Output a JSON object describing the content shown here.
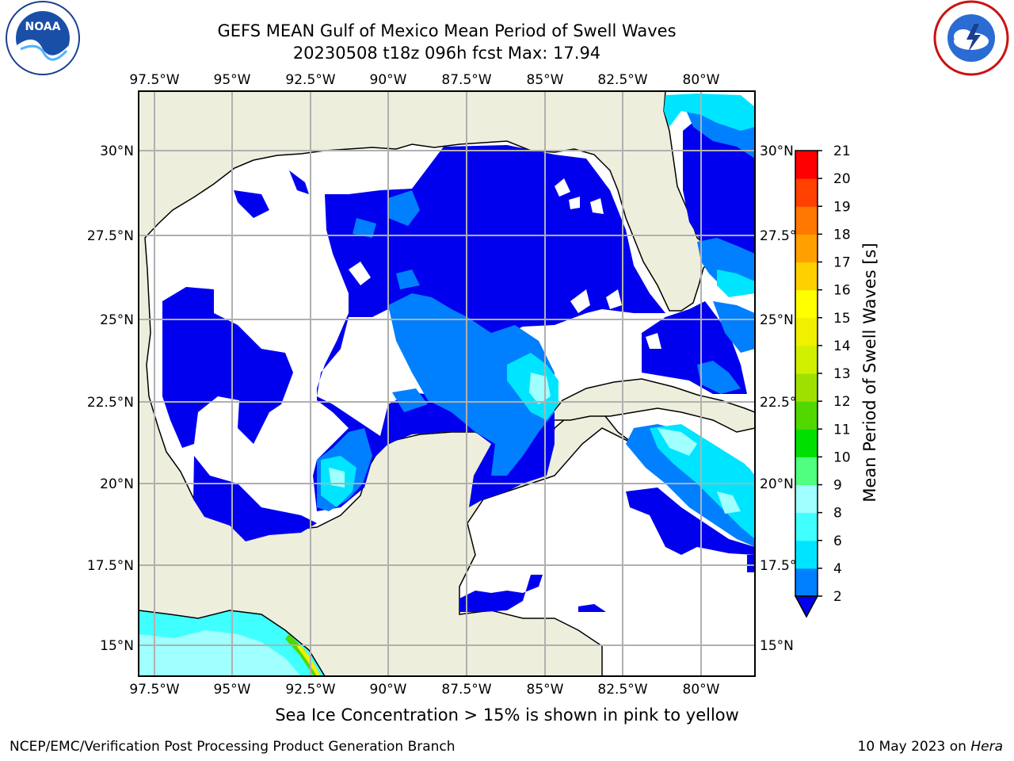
{
  "header": {
    "title_line1": "GEFS MEAN Gulf of Mexico Mean Period of Swell Waves",
    "title_line2": "20230508 t18z 096h fcst   Max: 17.94"
  },
  "logos": {
    "left": "noaa-logo",
    "right": "national-weather-service-logo"
  },
  "map": {
    "lon_labels": [
      "97.5°W",
      "95°W",
      "92.5°W",
      "90°W",
      "87.5°W",
      "85°W",
      "82.5°W",
      "80°W"
    ],
    "lat_labels": [
      "30°N",
      "27.5°N",
      "25°N",
      "22.5°N",
      "20°N",
      "17.5°N",
      "15°N"
    ],
    "colors": {
      "land": "#eeeedc",
      "ocean_white": "#ffffff",
      "grid": "#b0b0b0"
    }
  },
  "colorbar": {
    "label": "Mean Period of Swell Waves [s]",
    "ticks": [
      "2",
      "4",
      "6",
      "8",
      "9",
      "10",
      "11",
      "12",
      "13",
      "14",
      "15",
      "16",
      "17",
      "18",
      "19",
      "20",
      "21"
    ],
    "colors": [
      "#0000ee",
      "#0080ff",
      "#00e5ff",
      "#40ffff",
      "#a0ffff",
      "#50ff80",
      "#00e000",
      "#50d800",
      "#a0e000",
      "#d0f000",
      "#f0f000",
      "#ffff00",
      "#ffd000",
      "#ffa000",
      "#ff7800",
      "#ff4000",
      "#ff0000"
    ]
  },
  "notes": {
    "ice": "Sea Ice Concentration > 15% is shown in pink to yellow",
    "footer_left": "NCEP/EMC/Verification Post Processing Product Generation Branch",
    "footer_right_date": "10 May 2023 on ",
    "footer_right_host": "Hera"
  }
}
